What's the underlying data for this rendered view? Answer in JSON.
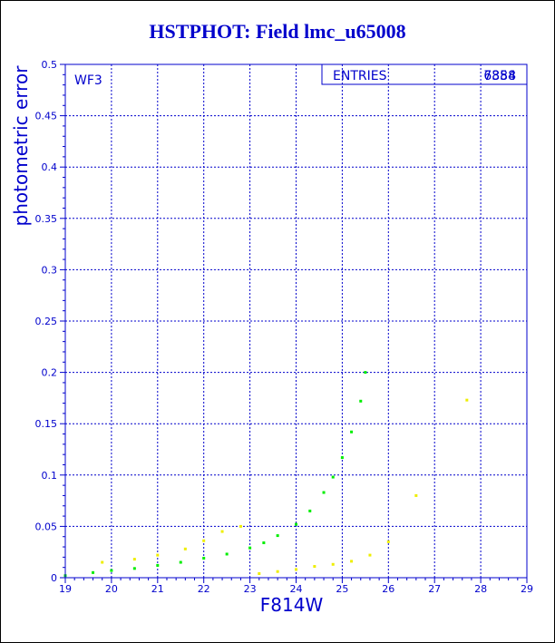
{
  "title": "HSTPHOT: Field lmc_u65008",
  "stats_box": {
    "label": "ENTRIES",
    "value_a": "7358",
    "value_b": "6884"
  },
  "colors": {
    "axis": "#0000cc",
    "series_primary": "#00ee00",
    "series_secondary": "#eeee00"
  },
  "chart_data": {
    "type": "scatter",
    "title": "HSTPHOT: Field lmc_u65008",
    "panel_label": "WF3",
    "xlabel": "F814W",
    "ylabel": "photometric error",
    "xlim": [
      19,
      29
    ],
    "ylim": [
      0,
      0.5
    ],
    "grid": true,
    "x_ticks": [
      "19",
      "20",
      "21",
      "22",
      "23",
      "24",
      "25",
      "26",
      "27",
      "28",
      "29"
    ],
    "y_ticks": [
      "0",
      "0.05",
      "0.1",
      "0.15",
      "0.2",
      "0.25",
      "0.3",
      "0.35",
      "0.4",
      "0.45",
      "0.5"
    ],
    "series": [
      {
        "color": "#00ee00",
        "x": [
          19.0,
          19.6,
          20.0,
          20.5,
          21.0,
          21.5,
          22.0,
          22.5,
          23.0,
          23.3,
          23.6,
          24.0,
          24.3,
          24.6,
          24.8,
          25.0,
          25.2,
          25.4,
          25.5
        ],
        "y": [
          0.002,
          0.005,
          0.007,
          0.009,
          0.012,
          0.015,
          0.019,
          0.023,
          0.029,
          0.034,
          0.041,
          0.052,
          0.065,
          0.083,
          0.098,
          0.117,
          0.142,
          0.172,
          0.2
        ]
      },
      {
        "color": "#eeee00",
        "x": [
          19.8,
          20.5,
          21.0,
          21.6,
          22.0,
          22.4,
          22.8,
          23.2,
          23.6,
          24.0,
          24.4,
          24.8,
          25.2,
          25.6,
          26.0,
          26.6,
          27.7
        ],
        "y": [
          0.015,
          0.018,
          0.022,
          0.028,
          0.036,
          0.045,
          0.05,
          0.004,
          0.006,
          0.008,
          0.011,
          0.013,
          0.016,
          0.022,
          0.035,
          0.08,
          0.173
        ]
      }
    ]
  }
}
